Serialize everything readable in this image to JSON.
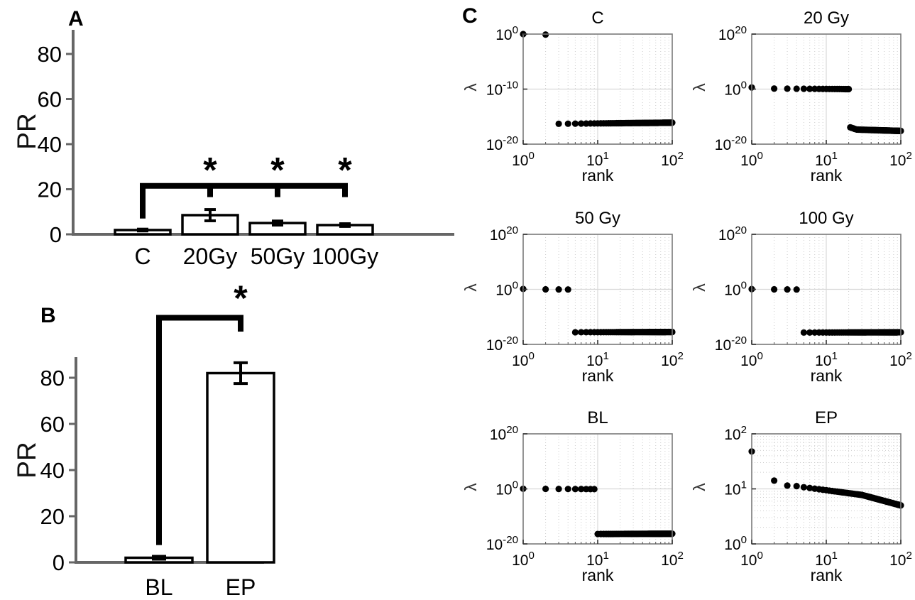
{
  "panels": {
    "a": "A",
    "b": "B",
    "c": "C"
  },
  "chart_data": [
    {
      "type": "bar",
      "panel": "A",
      "ylabel": "PR",
      "ylim": [
        0,
        90
      ],
      "yticks": [
        0,
        20,
        40,
        60,
        80
      ],
      "categories": [
        "C",
        "20Gy",
        "50Gy",
        "100Gy"
      ],
      "values": [
        1.9,
        8.5,
        5.0,
        4.1
      ],
      "errors": [
        0.4,
        2.5,
        0.9,
        0.6
      ],
      "bar_fill": "#ffffff",
      "bar_stroke": "#000000",
      "axis_color": "#666666",
      "significance": {
        "symbol": "*",
        "reference": "C",
        "targets": [
          "20Gy",
          "50Gy",
          "100Gy"
        ],
        "y_main": 21.5,
        "y_leg_bottom": 7,
        "y_tick_bottom": 16.5,
        "y_symbol": 28.5
      }
    },
    {
      "type": "bar",
      "panel": "B",
      "ylabel": "PR",
      "ylim": [
        0,
        89
      ],
      "yticks": [
        0,
        20,
        40,
        60,
        80
      ],
      "categories": [
        "BL",
        "EP"
      ],
      "values": [
        2.0,
        82.0
      ],
      "errors": [
        0.6,
        4.5
      ],
      "bar_fill": "#ffffff",
      "bar_stroke": "#000000",
      "axis_color": "#666666",
      "significance": {
        "symbol": "*",
        "reference": "BL",
        "targets": [
          "EP"
        ],
        "y_main": 106,
        "y_leg_bottom": 7.5,
        "y_tick_bottom": 100,
        "y_symbol": 114.5
      }
    },
    {
      "type": "scatter",
      "panel": "C",
      "xlabel": "rank",
      "ylabel": "λ",
      "xlim_log": [
        0,
        2
      ],
      "xticks_log": [
        0,
        1,
        2
      ],
      "subplots": [
        {
          "title": "C",
          "ylim_log": [
            -20,
            0
          ],
          "yticks_log": [
            0,
            -10,
            -20
          ],
          "points": [],
          "segments": [
            {
              "r": [
                1,
                2
              ],
              "log10": [
                0,
                -0.1
              ]
            },
            {
              "r": [
                3,
                100
              ],
              "log10": [
                -16.3,
                -16.1
              ]
            }
          ],
          "minor_grid_y": false
        },
        {
          "title": "20 Gy",
          "ylim_log": [
            -20,
            20
          ],
          "yticks_log": [
            20,
            0,
            -20
          ],
          "points": [
            [
              1,
              0.6
            ]
          ],
          "segments": [
            {
              "r": [
                2,
                20
              ],
              "log10": [
                0.2,
                0.0
              ]
            },
            {
              "r": [
                21,
                25
              ],
              "log10": [
                -13.9,
                -14.6
              ]
            },
            {
              "r": [
                26,
                100
              ],
              "log10": [
                -14.7,
                -15.2
              ]
            }
          ],
          "minor_grid_y": false
        },
        {
          "title": "50 Gy",
          "ylim_log": [
            -20,
            20
          ],
          "yticks_log": [
            20,
            0,
            -20
          ],
          "points": [
            [
              1,
              0.15
            ]
          ],
          "segments": [
            {
              "r": [
                2,
                4
              ],
              "log10": [
                0,
                -0.05
              ]
            },
            {
              "r": [
                5,
                100
              ],
              "log10": [
                -15.6,
                -15.5
              ]
            }
          ],
          "minor_grid_y": false
        },
        {
          "title": "100 Gy",
          "ylim_log": [
            -20,
            20
          ],
          "yticks_log": [
            20,
            0,
            -20
          ],
          "points": [
            [
              1,
              0.1
            ]
          ],
          "segments": [
            {
              "r": [
                2,
                4
              ],
              "log10": [
                0,
                -0.05
              ]
            },
            {
              "r": [
                5,
                100
              ],
              "log10": [
                -15.7,
                -15.6
              ]
            }
          ],
          "minor_grid_y": false
        },
        {
          "title": "BL",
          "ylim_log": [
            -20,
            20
          ],
          "yticks_log": [
            20,
            0,
            -20
          ],
          "points": [
            [
              1,
              0.05
            ]
          ],
          "segments": [
            {
              "r": [
                2,
                9
              ],
              "log10": [
                0,
                -0.1
              ]
            },
            {
              "r": [
                10,
                100
              ],
              "log10": [
                -16.4,
                -16.3
              ]
            }
          ],
          "minor_grid_y": false
        },
        {
          "title": "EP",
          "ylim_log": [
            0,
            2
          ],
          "yticks_log": [
            2,
            1,
            0
          ],
          "points": [
            [
              1,
              1.68
            ],
            [
              2,
              1.15
            ],
            [
              3,
              1.06
            ],
            [
              4,
              1.05
            ]
          ],
          "segments": [
            {
              "r": [
                5,
                30
              ],
              "log10": [
                1.03,
                0.89
              ]
            },
            {
              "r": [
                31,
                100
              ],
              "log10": [
                0.885,
                0.7
              ]
            }
          ],
          "minor_grid_y": true
        }
      ],
      "colors": {
        "dot": "#000000",
        "box": "#7a7a7a",
        "grid_major": "#d9d9d9",
        "grid_minor": "#cccccc"
      }
    }
  ]
}
